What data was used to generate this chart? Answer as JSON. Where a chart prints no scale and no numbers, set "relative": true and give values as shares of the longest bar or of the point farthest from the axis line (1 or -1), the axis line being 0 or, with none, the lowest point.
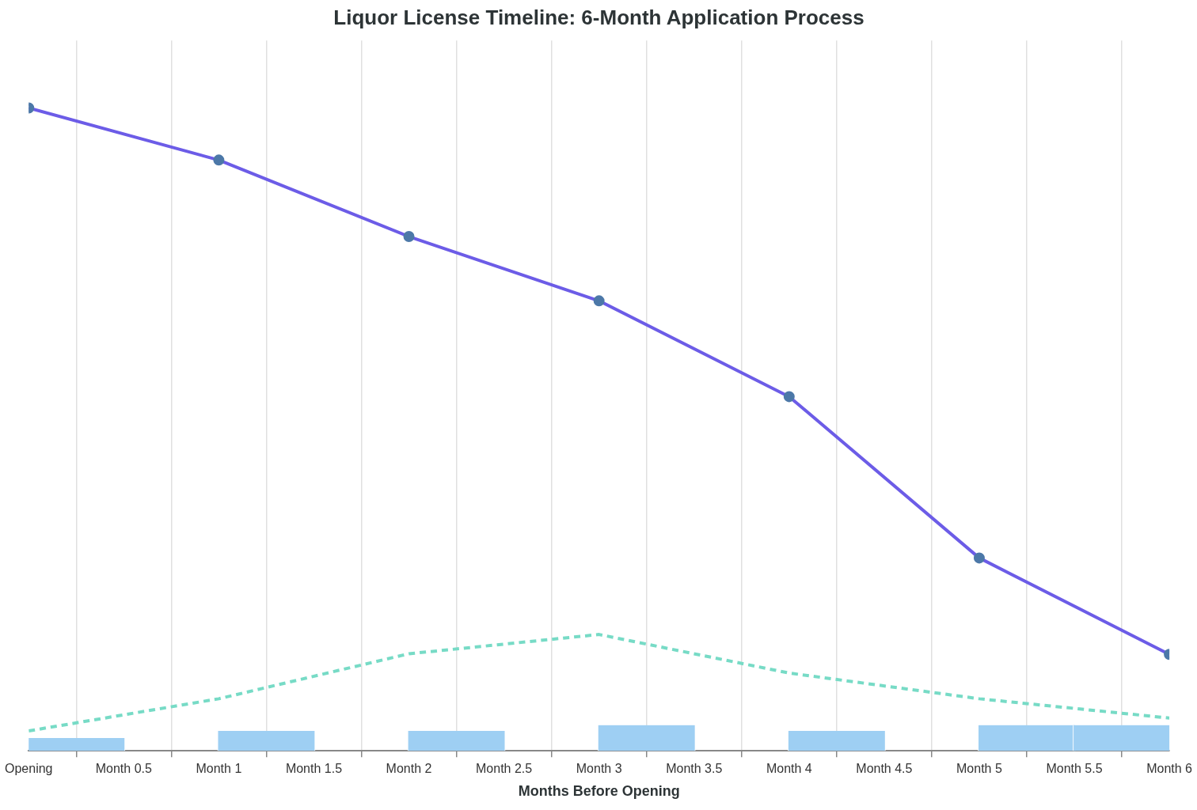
{
  "chart_data": {
    "type": "line",
    "title": "Liquor License Timeline: 6-Month Application Process",
    "xlabel": "Months Before Opening",
    "relative": true,
    "grid": "x",
    "legend": false,
    "categories": [
      "Opening",
      "Month 0.5",
      "Month 1",
      "Month 1.5",
      "Month 2",
      "Month 2.5",
      "Month 3",
      "Month 3.5",
      "Month 4",
      "Month 4.5",
      "Month 5",
      "Month 5.5",
      "Month 6"
    ],
    "series": [
      {
        "type": "bar",
        "color": "#9ecff3",
        "values": [
          0.02,
          null,
          0.031,
          null,
          0.031,
          null,
          0.04,
          null,
          0.031,
          null,
          0.04,
          0.04,
          null
        ]
      },
      {
        "color": "#77dbc6",
        "line_style": "dashed",
        "marker": "none",
        "values": [
          0.031,
          null,
          0.081,
          null,
          0.151,
          null,
          0.181,
          null,
          0.121,
          null,
          0.081,
          null,
          0.051
        ]
      },
      {
        "color": "#6c5ce7",
        "line_style": "solid",
        "marker": "circle",
        "values": [
          1,
          null,
          0.919,
          null,
          0.8,
          null,
          0.7,
          null,
          0.551,
          null,
          0.3,
          null,
          0.15
        ]
      }
    ]
  }
}
